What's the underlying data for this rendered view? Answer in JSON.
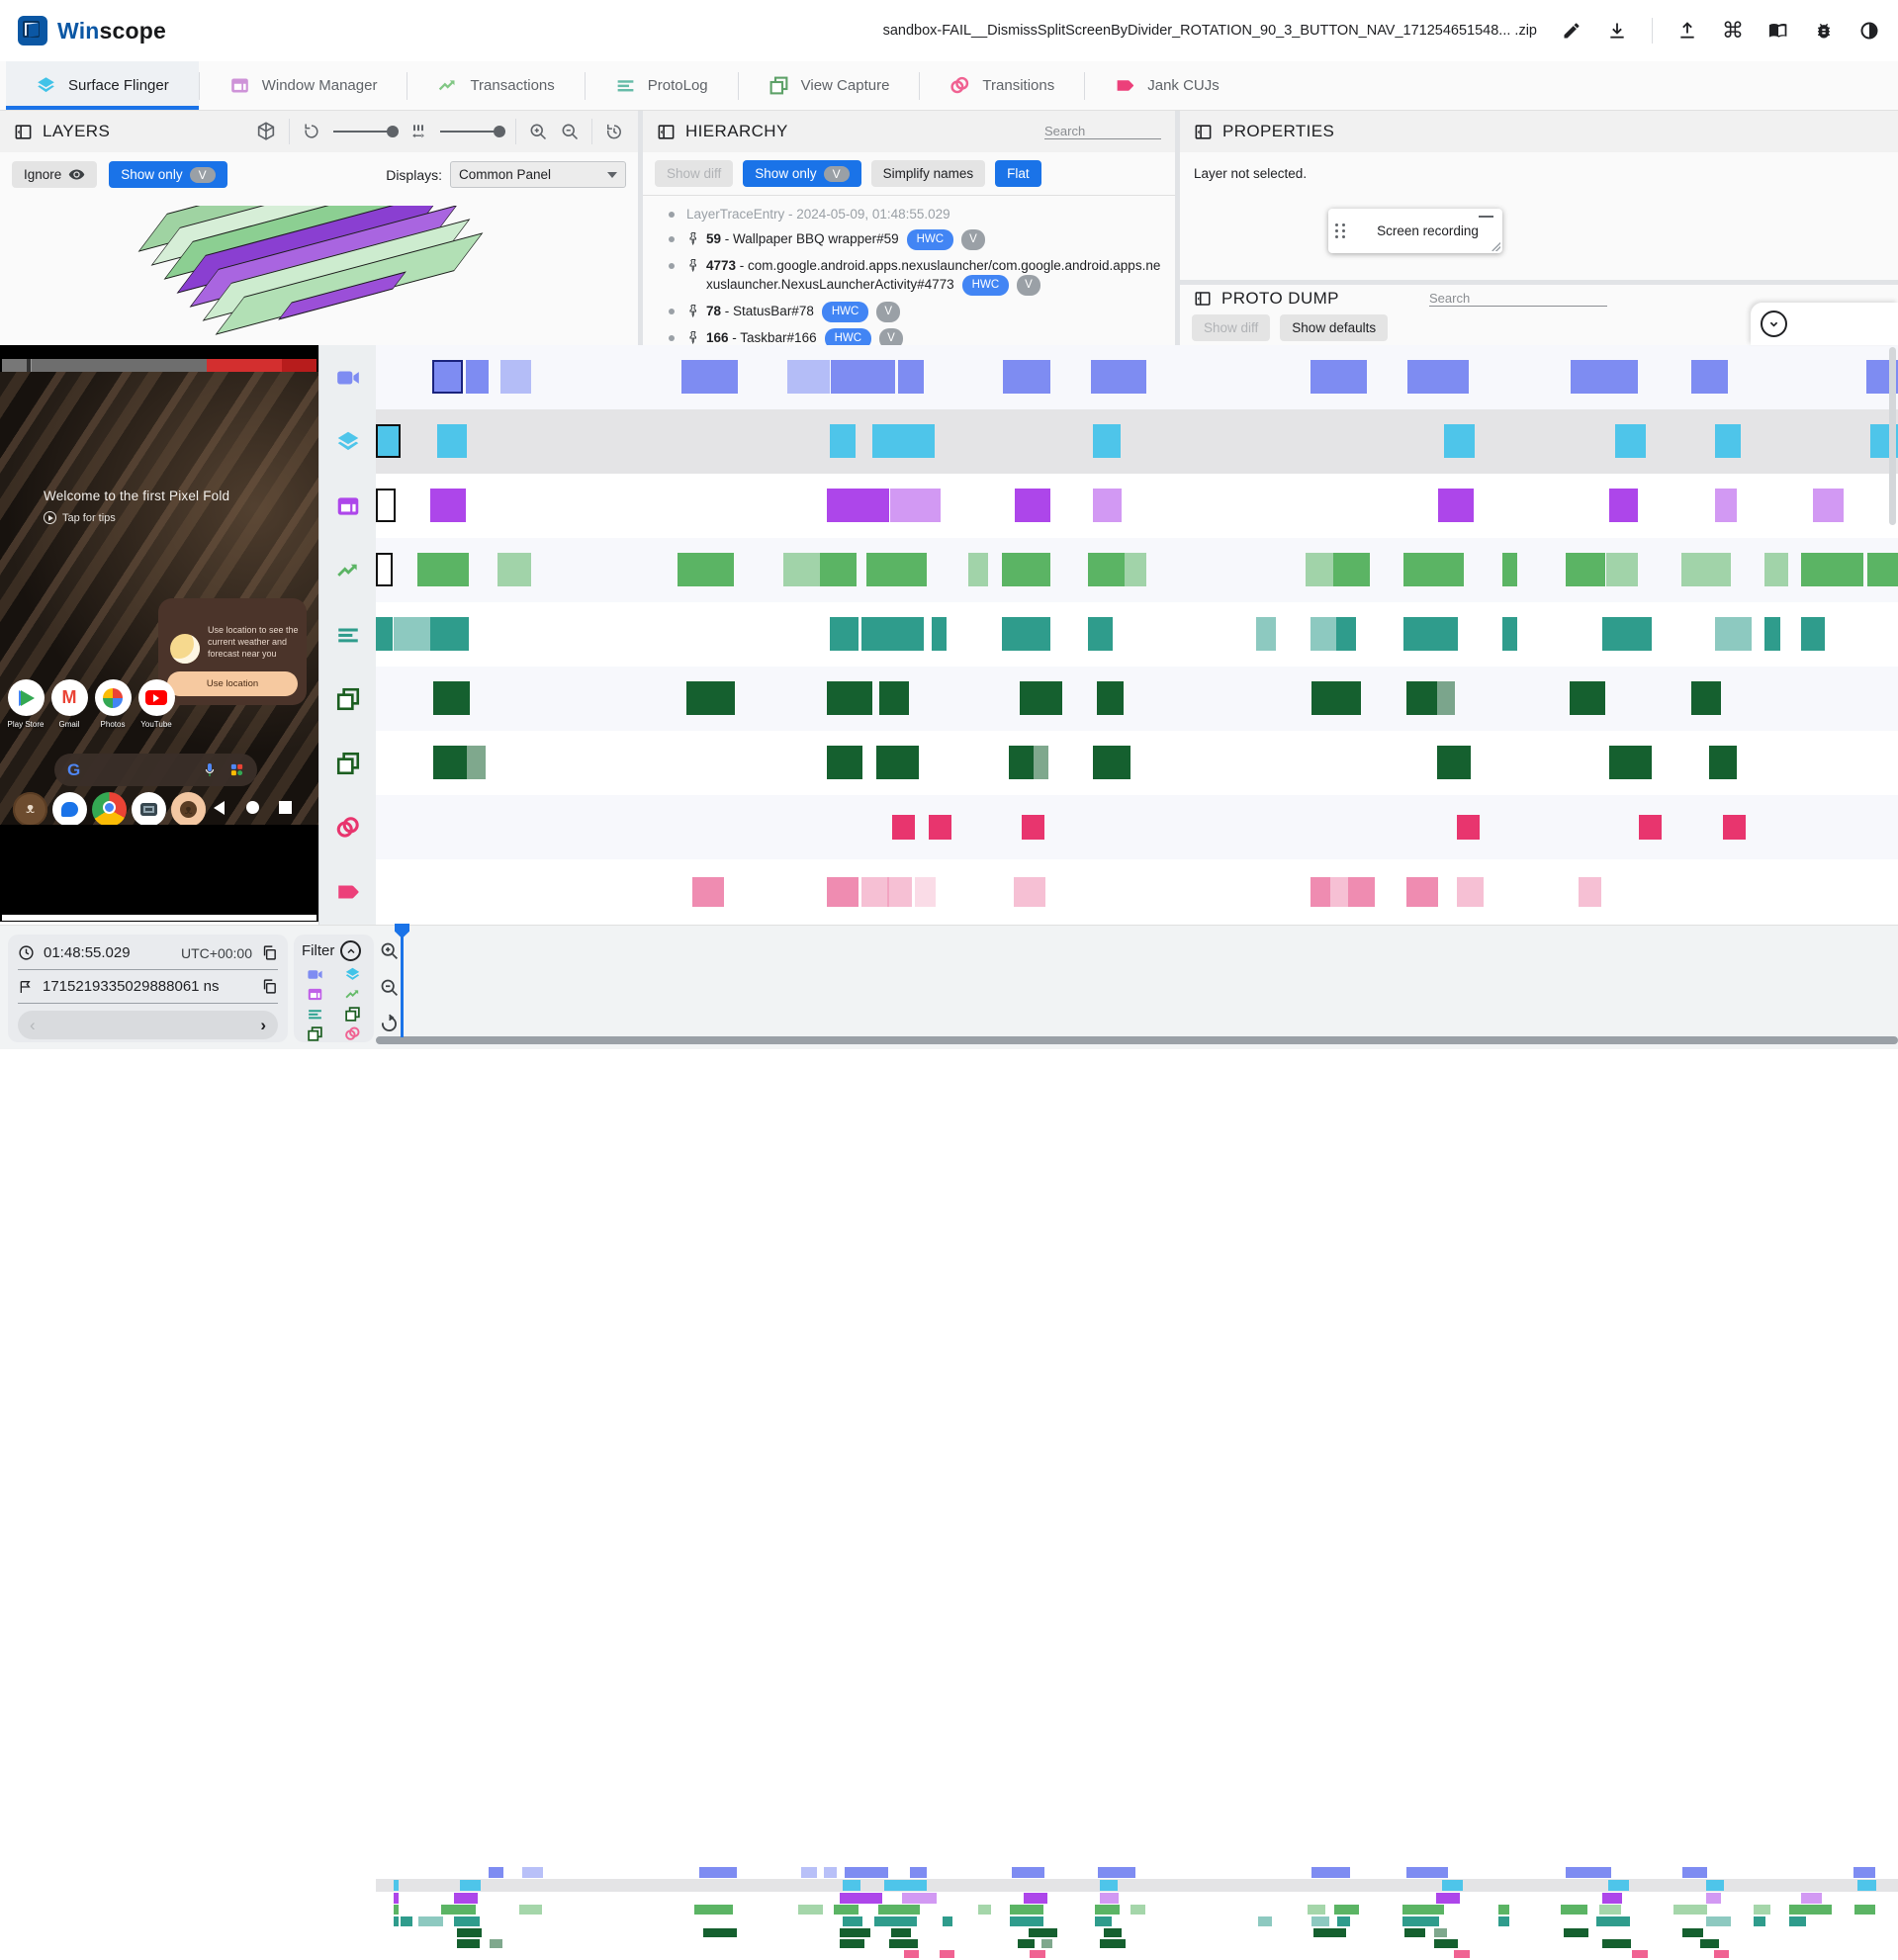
{
  "colors": {
    "accent": "#1a73e8",
    "chip_blue": "#4285f4",
    "chip_gray": "#9aa0a6"
  },
  "header": {
    "app_name_part1": "Win",
    "app_name_part2": "scope",
    "trace_title": "sandbox-FAIL__DismissSplitScreenByDivider_ROTATION_90_3_BUTTON_NAV_171254651548... .zip",
    "icons": [
      "edit-icon",
      "download-icon",
      "upload-icon",
      "shortcuts-icon",
      "docs-icon",
      "bug-icon",
      "dark-mode-icon"
    ],
    "command_glyph": "⌘"
  },
  "tabs": [
    {
      "label": "Surface Flinger",
      "icon": "layers",
      "color": "#41c3e8",
      "active": true
    },
    {
      "label": "Window Manager",
      "icon": "window",
      "color": "#ce93d8",
      "active": false
    },
    {
      "label": "Transactions",
      "icon": "trend",
      "color": "#81c784",
      "active": false
    },
    {
      "label": "ProtoLog",
      "icon": "lines",
      "color": "#66bba8",
      "active": false
    },
    {
      "label": "View Capture",
      "icon": "squares",
      "color": "#5da168",
      "active": false
    },
    {
      "label": "Transitions",
      "icon": "rings",
      "color": "#f06292",
      "active": false
    },
    {
      "label": "Jank CUJs",
      "icon": "tag",
      "color": "#ec407a",
      "active": false
    }
  ],
  "layers_panel": {
    "title": "LAYERS",
    "ignore_label": "Ignore",
    "show_only_label": "Show only",
    "v_chip": "V",
    "displays_label": "Displays:",
    "displays_value": "Common Panel"
  },
  "hierarchy_panel": {
    "title": "HIERARCHY",
    "search_placeholder": "Search",
    "show_diff_label": "Show diff",
    "show_only_label": "Show only",
    "v_chip": "V",
    "simplify_label": "Simplify names",
    "flat_label": "Flat",
    "tree": [
      {
        "gray": true,
        "pin": false,
        "num": "",
        "label": "LayerTraceEntry - 2024-05-09, 01:48:55.029",
        "chips": []
      },
      {
        "gray": false,
        "pin": true,
        "num": "59",
        "label": " - Wallpaper BBQ wrapper#59",
        "chips": [
          "HWC",
          "V"
        ]
      },
      {
        "gray": false,
        "pin": true,
        "num": "4773",
        "label": " - com.google.android.apps.nexuslauncher/com.google.android.apps.nexuslauncher.NexusLauncherActivity#4773",
        "chips": [
          "HWC",
          "V"
        ]
      },
      {
        "gray": false,
        "pin": true,
        "num": "78",
        "label": " - StatusBar#78",
        "chips": [
          "HWC",
          "V"
        ]
      },
      {
        "gray": false,
        "pin": true,
        "num": "166",
        "label": " - Taskbar#166",
        "chips": [
          "HWC",
          "V"
        ]
      }
    ]
  },
  "properties_panel": {
    "title": "PROPERTIES",
    "empty_message": "Layer not selected.",
    "overlay_title": "Screen recording"
  },
  "proto_dump_panel": {
    "title": "PROTO DUMP",
    "search_placeholder": "Search",
    "show_diff_label": "Show diff",
    "show_defaults_label": "Show defaults"
  },
  "phone": {
    "welcome_text": "Welcome to the first Pixel Fold",
    "tips_text": "Tap for tips",
    "weather_text": "Use location to see the current weather and forecast near you",
    "use_location_label": "Use location",
    "apps": [
      {
        "label": "Play Store",
        "glyph": "play"
      },
      {
        "label": "Gmail",
        "glyph": "gmail"
      },
      {
        "label": "Photos",
        "glyph": "photos"
      },
      {
        "label": "YouTube",
        "glyph": "youtube"
      }
    ],
    "dock_icons": [
      "android-settings-icon",
      "messages-icon",
      "chrome-icon",
      "camera-icon",
      "android-emulator-icon"
    ],
    "nav_icons": [
      "back-icon",
      "home-icon",
      "recents-icon"
    ]
  },
  "timeline": {
    "rows": [
      {
        "name": "screen-recording",
        "icon": "videocam",
        "color": "#7e8cf2",
        "cursor_border": "#1a237e",
        "size": "tall",
        "blocks": [
          [
            0.037,
            0.02,
            1,
            1
          ],
          [
            0.059,
            0.015,
            1
          ],
          [
            0.082,
            0.02,
            2
          ],
          [
            0.201,
            0.037,
            1
          ],
          [
            0.27,
            0.015,
            2
          ],
          [
            0.285,
            0.013,
            2
          ],
          [
            0.299,
            0.042,
            1
          ],
          [
            0.343,
            0.017,
            1
          ],
          [
            0.412,
            0.031,
            1
          ],
          [
            0.47,
            0.036,
            1
          ],
          [
            0.614,
            0.037,
            1
          ],
          [
            0.678,
            0.04,
            1
          ],
          [
            0.785,
            0.044,
            1
          ],
          [
            0.864,
            0.024,
            1
          ],
          [
            0.979,
            0.021,
            1
          ]
        ]
      },
      {
        "name": "surface-flinger",
        "icon": "layers",
        "color": "#4ec5ea",
        "cursor_border": "#111111",
        "size": "tall",
        "selected": true,
        "blocks": [
          [
            0.0,
            0.016,
            1,
            1
          ],
          [
            0.04,
            0.02,
            1
          ],
          [
            0.298,
            0.017,
            1
          ],
          [
            0.326,
            0.041,
            1
          ],
          [
            0.471,
            0.018,
            1
          ],
          [
            0.702,
            0.02,
            1
          ],
          [
            0.814,
            0.02,
            1
          ],
          [
            0.88,
            0.017,
            1
          ],
          [
            0.982,
            0.018,
            1
          ]
        ]
      },
      {
        "name": "window-manager",
        "icon": "window",
        "color": "#ad46ea",
        "cursor_border": "#111111",
        "size": "tall",
        "blocks": [
          [
            0.0,
            0.013,
            2,
            1
          ],
          [
            0.036,
            0.023,
            1
          ],
          [
            0.296,
            0.041,
            1
          ],
          [
            0.338,
            0.033,
            2
          ],
          [
            0.42,
            0.023,
            1
          ],
          [
            0.471,
            0.019,
            2
          ],
          [
            0.698,
            0.023,
            1
          ],
          [
            0.81,
            0.019,
            1
          ],
          [
            0.88,
            0.014,
            2
          ],
          [
            0.944,
            0.02,
            2
          ]
        ]
      },
      {
        "name": "transactions",
        "icon": "trend",
        "color": "#5bb464",
        "cursor_border": "#111111",
        "size": "tall",
        "blocks": [
          [
            0.0,
            0.011,
            2,
            1
          ],
          [
            0.027,
            0.034,
            1
          ],
          [
            0.08,
            0.022,
            2
          ],
          [
            0.198,
            0.037,
            1
          ],
          [
            0.268,
            0.024,
            2
          ],
          [
            0.292,
            0.024,
            1
          ],
          [
            0.322,
            0.04,
            1
          ],
          [
            0.389,
            0.013,
            2
          ],
          [
            0.411,
            0.032,
            1
          ],
          [
            0.468,
            0.024,
            1
          ],
          [
            0.492,
            0.014,
            2
          ],
          [
            0.611,
            0.018,
            2
          ],
          [
            0.629,
            0.024,
            1
          ],
          [
            0.675,
            0.04,
            1
          ],
          [
            0.74,
            0.01,
            1
          ],
          [
            0.782,
            0.026,
            1
          ],
          [
            0.808,
            0.021,
            2
          ],
          [
            0.858,
            0.032,
            2
          ],
          [
            0.912,
            0.016,
            2
          ],
          [
            0.936,
            0.041,
            1
          ],
          [
            0.98,
            0.02,
            1
          ]
        ]
      },
      {
        "name": "protolog",
        "icon": "lines",
        "color": "#2f9c8c",
        "size": "tall",
        "blocks": [
          [
            0.0,
            0.011,
            1
          ],
          [
            0.012,
            0.024,
            2
          ],
          [
            0.036,
            0.025,
            1
          ],
          [
            0.298,
            0.019,
            1
          ],
          [
            0.319,
            0.041,
            1
          ],
          [
            0.365,
            0.01,
            1
          ],
          [
            0.411,
            0.032,
            1
          ],
          [
            0.468,
            0.016,
            1
          ],
          [
            0.578,
            0.013,
            2
          ],
          [
            0.614,
            0.017,
            2
          ],
          [
            0.631,
            0.013,
            1
          ],
          [
            0.675,
            0.036,
            1
          ],
          [
            0.74,
            0.01,
            1
          ],
          [
            0.806,
            0.032,
            1
          ],
          [
            0.88,
            0.024,
            2
          ],
          [
            0.912,
            0.011,
            1
          ],
          [
            0.936,
            0.016,
            1
          ]
        ]
      },
      {
        "name": "view-capture-a",
        "icon": "squares",
        "color": "#15602f",
        "size": "tall",
        "blocks": [
          [
            0.038,
            0.024,
            1
          ],
          [
            0.204,
            0.032,
            1
          ],
          [
            0.296,
            0.03,
            1
          ],
          [
            0.331,
            0.019,
            1
          ],
          [
            0.423,
            0.028,
            1
          ],
          [
            0.474,
            0.017,
            1
          ],
          [
            0.615,
            0.032,
            1
          ],
          [
            0.677,
            0.02,
            1
          ],
          [
            0.697,
            0.012,
            2
          ],
          [
            0.784,
            0.024,
            1
          ],
          [
            0.864,
            0.02,
            1
          ]
        ]
      },
      {
        "name": "view-capture-b",
        "icon": "squares",
        "color": "#15602f",
        "size": "tall",
        "blocks": [
          [
            0.038,
            0.022,
            1
          ],
          [
            0.06,
            0.012,
            2
          ],
          [
            0.296,
            0.024,
            1
          ],
          [
            0.329,
            0.028,
            1
          ],
          [
            0.416,
            0.016,
            1
          ],
          [
            0.432,
            0.01,
            2
          ],
          [
            0.471,
            0.025,
            1
          ],
          [
            0.697,
            0.022,
            1
          ],
          [
            0.81,
            0.028,
            1
          ],
          [
            0.876,
            0.018,
            1
          ]
        ]
      },
      {
        "name": "transitions",
        "icon": "rings",
        "color": "#e8356e",
        "size": "short",
        "blocks": [
          [
            0.339,
            0.015,
            1
          ],
          [
            0.363,
            0.015,
            1
          ],
          [
            0.424,
            0.015,
            1
          ],
          [
            0.71,
            0.015,
            1
          ],
          [
            0.83,
            0.015,
            1
          ],
          [
            0.885,
            0.015,
            1
          ]
        ]
      },
      {
        "name": "jank-cujs",
        "icon": "tag",
        "color": "#ef8cb1",
        "size": "mid",
        "blocks": [
          [
            0.208,
            0.021,
            1
          ],
          [
            0.296,
            0.021,
            1
          ],
          [
            0.319,
            0.018,
            2
          ],
          [
            0.336,
            0.016,
            2
          ],
          [
            0.354,
            0.014,
            3
          ],
          [
            0.419,
            0.021,
            2
          ],
          [
            0.614,
            0.013,
            1
          ],
          [
            0.627,
            0.012,
            2
          ],
          [
            0.639,
            0.017,
            1
          ],
          [
            0.677,
            0.021,
            1
          ],
          [
            0.71,
            0.018,
            2
          ],
          [
            0.79,
            0.015,
            2
          ]
        ]
      }
    ],
    "minimap_rows": [
      0,
      1,
      2,
      3,
      4,
      5,
      6,
      7
    ],
    "minimap_premark_rows": [
      1,
      2,
      3,
      4
    ]
  },
  "bottom": {
    "current_time": "01:48:55.029",
    "timezone": "UTC+00:00",
    "current_ns": "1715219335029888061 ns",
    "filter_label": "Filter",
    "prev_glyph": "‹",
    "next_glyph": "›",
    "filter_icons": [
      "videocam",
      "layers",
      "window",
      "trend",
      "lines",
      "squares",
      "squares",
      "rings"
    ],
    "filter_icon_colors": [
      "#7e8cf2",
      "#41c3e8",
      "#c061e8",
      "#66bb6a",
      "#2aa18f",
      "#1b5e20",
      "#1b5e20",
      "#f06292"
    ]
  }
}
